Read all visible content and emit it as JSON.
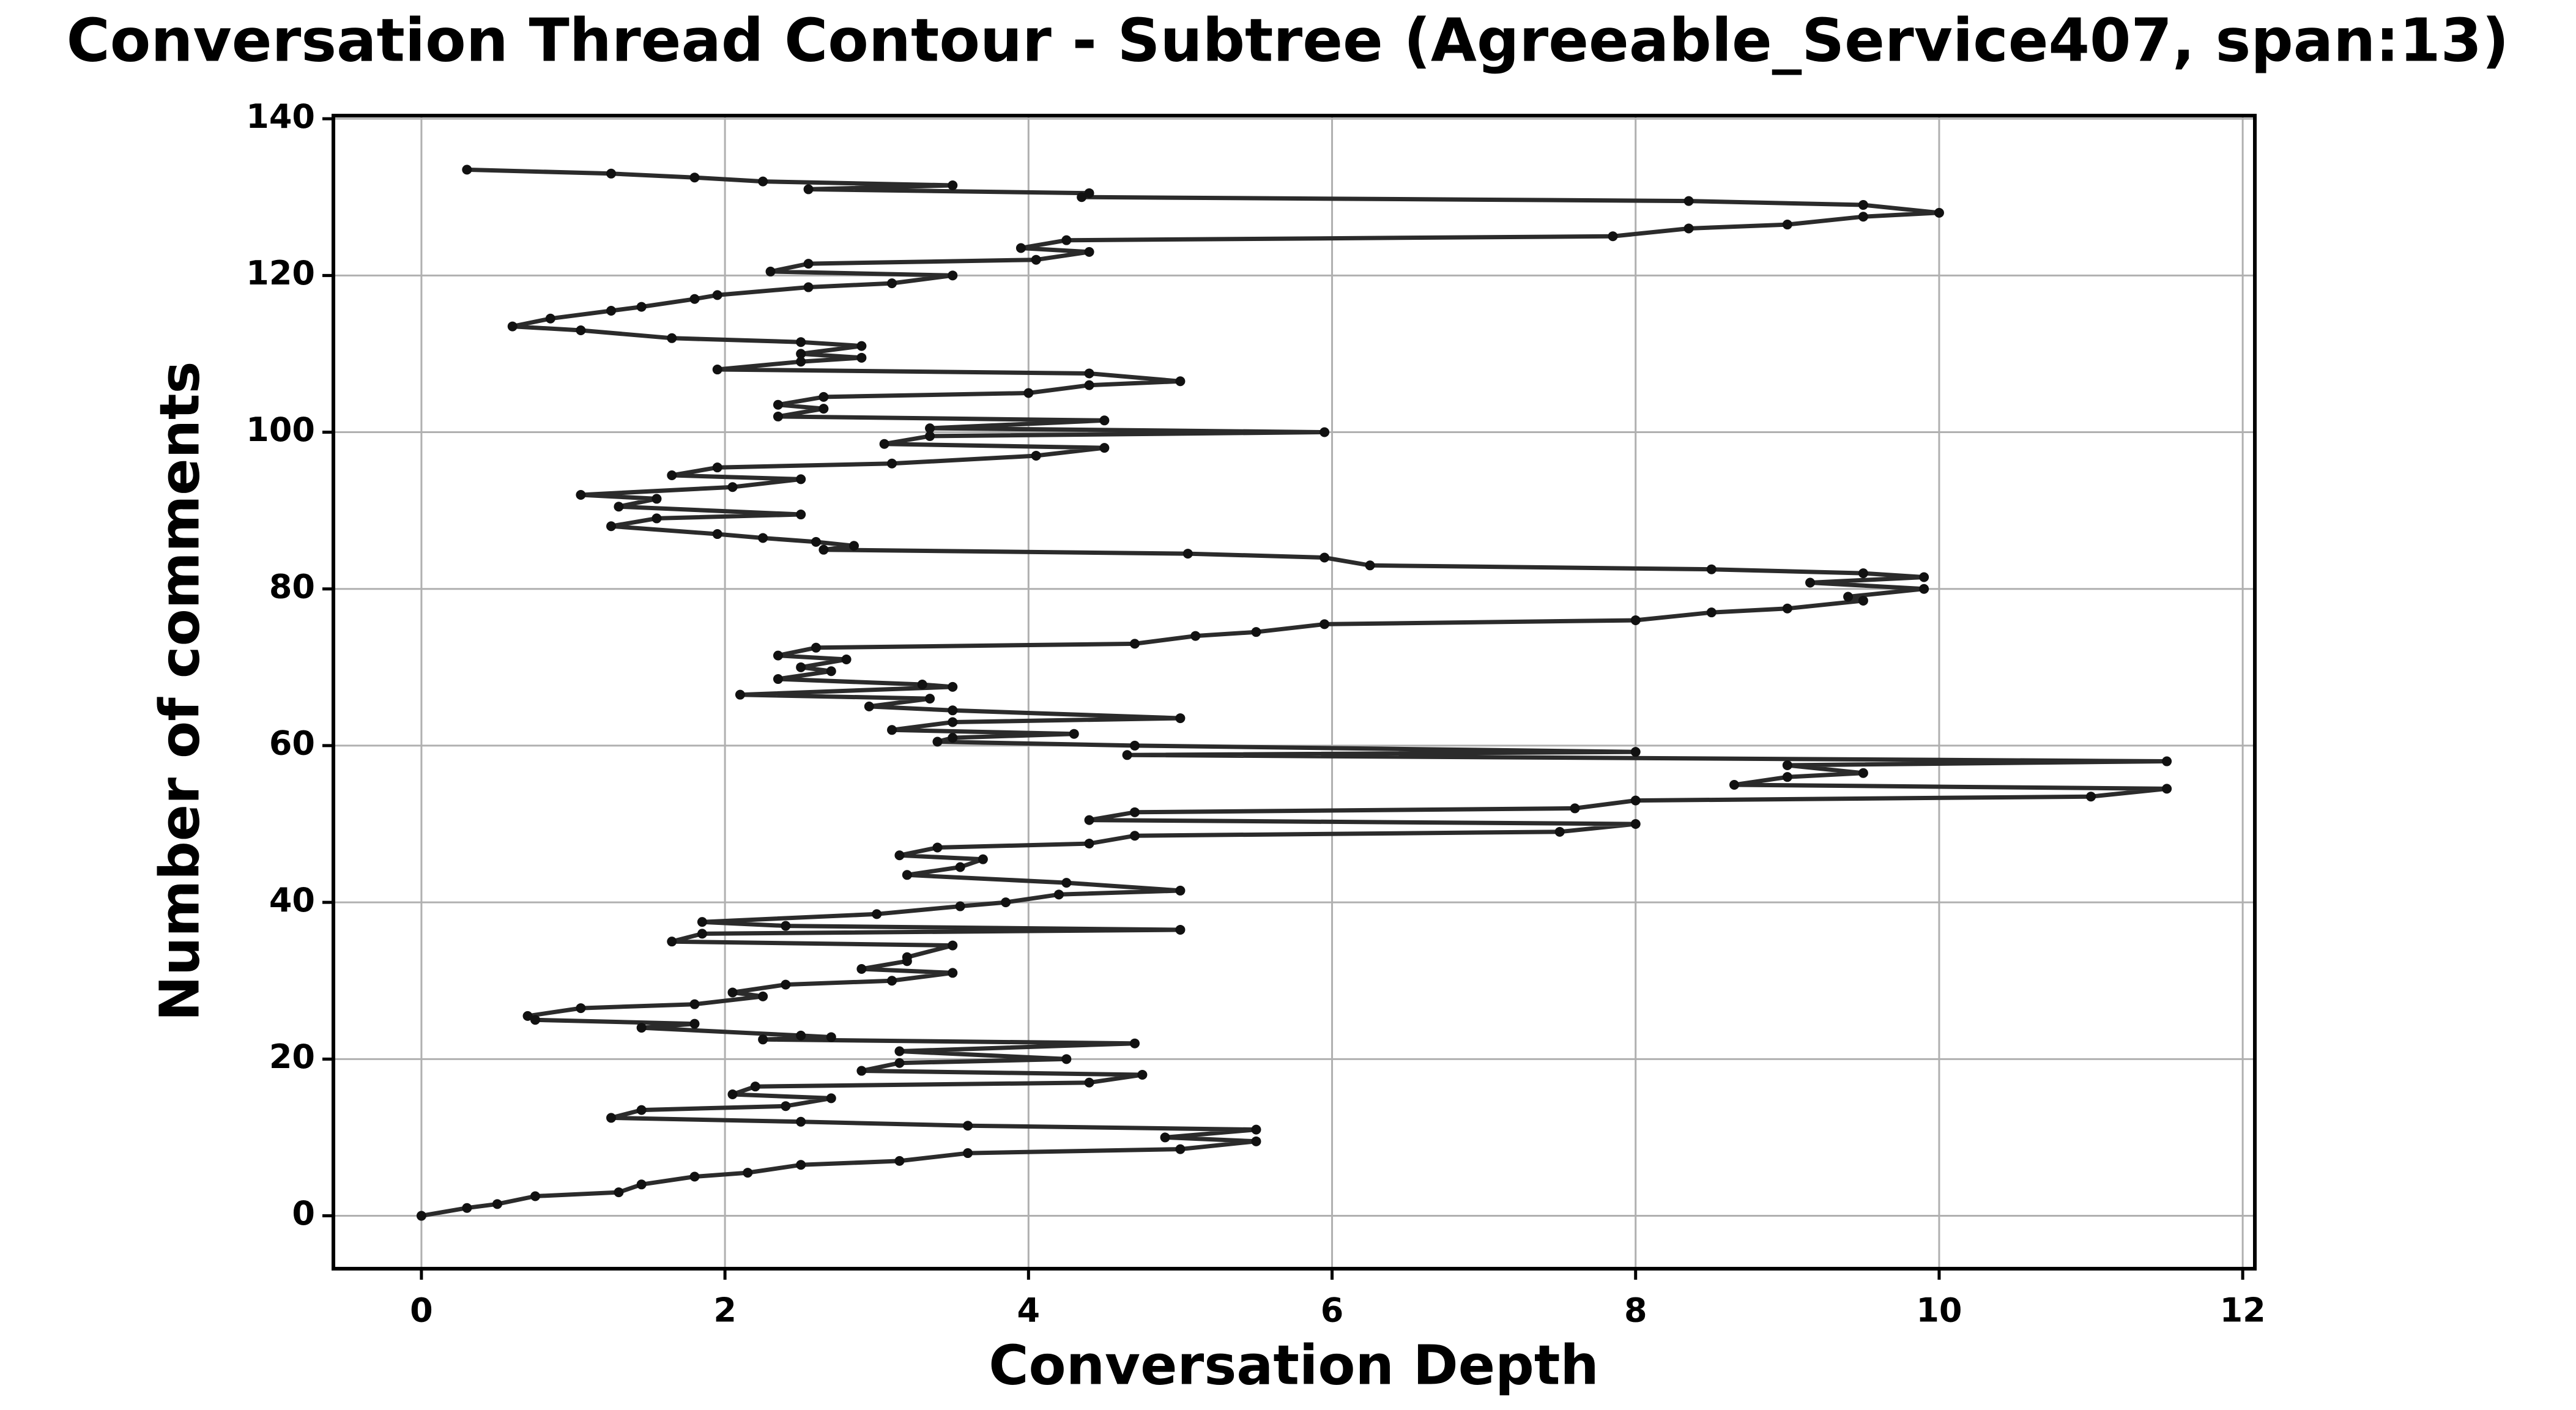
{
  "chart_data": {
    "type": "line",
    "title": "Conversation Thread Contour  - Subtree (Agreeable_Service407, span:13)",
    "x_label": "Conversation Depth",
    "y_label": "Number of comments",
    "color": "#2b2b2b",
    "grid": true,
    "xlim": [
      -0.58,
      12.08
    ],
    "ylim": [
      -6.75,
      140.4
    ],
    "xticks": [
      0,
      2,
      4,
      6,
      8,
      10,
      12
    ],
    "yticks": [
      0,
      20,
      40,
      60,
      80,
      100,
      120,
      140
    ],
    "x": [
      0,
      0.3,
      0.5,
      0.75,
      1.3,
      1.45,
      1.8,
      2.15,
      2.5,
      3.15,
      3.6,
      5,
      5.5,
      4.9,
      5.5,
      3.6,
      2.5,
      1.25,
      1.45,
      2.4,
      2.7,
      2.05,
      2.2,
      4.4,
      4.75,
      2.9,
      3.15,
      4.25,
      3.15,
      4.7,
      2.25,
      2.7,
      2.5,
      1.45,
      1.8,
      0.75,
      0.7,
      1.05,
      1.8,
      2.25,
      2.05,
      2.4,
      3.1,
      3.5,
      2.9,
      3.2,
      3.2,
      3.5,
      1.65,
      1.85,
      5,
      2.4,
      1.85,
      3,
      3.55,
      3.85,
      4.2,
      5,
      4.25,
      3.2,
      3.55,
      3.7,
      3.15,
      3.4,
      4.4,
      4.7,
      7.5,
      8,
      4.4,
      4.7,
      7.6,
      8,
      11,
      11.5,
      8.65,
      9,
      9.5,
      9,
      11.5,
      4.65,
      8,
      4.7,
      3.4,
      3.5,
      4.3,
      3.1,
      3.5,
      5,
      3.5,
      2.95,
      3.35,
      2.1,
      3.5,
      3.3,
      2.35,
      2.7,
      2.5,
      2.8,
      2.35,
      2.6,
      4.7,
      5.1,
      5.5,
      5.95,
      8,
      8.5,
      9,
      9.5,
      9.4,
      9.9,
      9.15,
      9.9,
      9.5,
      8.5,
      6.25,
      5.95,
      5.05,
      2.65,
      2.85,
      2.6,
      2.25,
      1.95,
      1.25,
      1.55,
      2.5,
      1.3,
      1.55,
      1.05,
      2.05,
      2.5,
      1.65,
      1.95,
      3.1,
      4.05,
      4.5,
      3.05,
      3.35,
      5.95,
      3.35,
      4.5,
      2.35,
      2.65,
      2.35,
      2.65,
      4,
      4.4,
      5,
      4.4,
      1.95,
      2.5,
      2.9,
      2.5,
      2.9,
      2.5,
      1.65,
      1.05,
      0.6,
      0.85,
      1.25,
      1.45,
      1.8,
      1.95,
      2.55,
      3.1,
      3.5,
      2.3,
      2.55,
      4.05,
      4.4,
      3.95,
      4.25,
      7.85,
      8.35,
      9,
      9.5,
      10,
      9.5,
      8.35,
      4.35,
      4.4,
      2.55,
      3.5,
      2.25,
      1.8,
      1.25,
      0.3
    ],
    "values": [
      0,
      1,
      1.5,
      2.5,
      3,
      4,
      5,
      5.5,
      6.5,
      7,
      8,
      8.5,
      9.5,
      10,
      11,
      11.5,
      12,
      12.5,
      13.5,
      14,
      15,
      15.5,
      16.5,
      17,
      18,
      18.5,
      19.5,
      20,
      21,
      22,
      22.5,
      22.8,
      23,
      24,
      24.5,
      25,
      25.5,
      26.5,
      27,
      28,
      28.5,
      29.5,
      30,
      31,
      31.5,
      32.5,
      33,
      34.5,
      35,
      36,
      36.5,
      37,
      37.5,
      38.5,
      39.5,
      40,
      41,
      41.5,
      42.5,
      43.5,
      44.5,
      45.5,
      46,
      47,
      47.5,
      48.5,
      49,
      50,
      50.5,
      51.5,
      52,
      53,
      53.5,
      54.5,
      55,
      56,
      56.5,
      57.5,
      58,
      58.8,
      59.2,
      60,
      60.5,
      61,
      61.5,
      62,
      63,
      63.5,
      64.5,
      65,
      66,
      66.5,
      67.5,
      67.8,
      68.5,
      69.5,
      70,
      71,
      71.5,
      72.5,
      73,
      74,
      74.5,
      75.5,
      76,
      77,
      77.5,
      78.5,
      79,
      80,
      80.8,
      81.5,
      82,
      82.5,
      83,
      84,
      84.5,
      85,
      85.5,
      86,
      86.5,
      87,
      88,
      89,
      89.5,
      90.5,
      91.5,
      92,
      93,
      94,
      94.5,
      95.5,
      96,
      97,
      98,
      98.5,
      99.5,
      100,
      100.5,
      101.5,
      102,
      103,
      103.5,
      104.5,
      105,
      106,
      106.5,
      107.5,
      108,
      109,
      109.5,
      110,
      111,
      111.5,
      112,
      113,
      113.5,
      114.5,
      115.5,
      116,
      117,
      117.5,
      118.5,
      119,
      120,
      120.5,
      121.5,
      122,
      123,
      123.5,
      124.5,
      125,
      126,
      126.5,
      127.5,
      128,
      129,
      129.5,
      130,
      130.5,
      131,
      131.5,
      132,
      132.5,
      133,
      133.5
    ]
  }
}
